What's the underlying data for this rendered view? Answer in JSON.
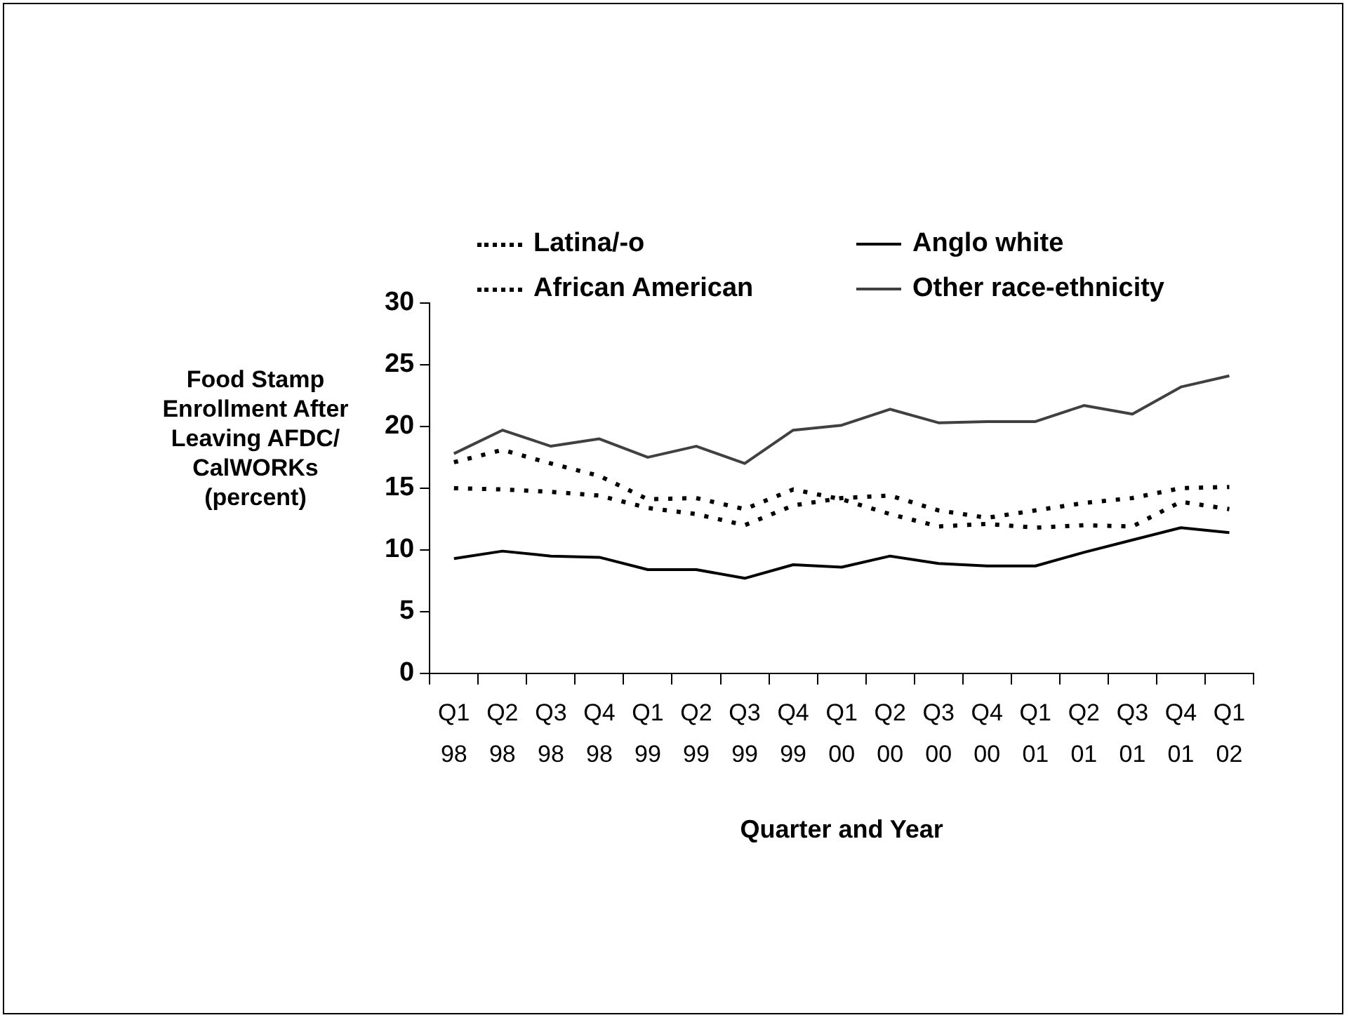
{
  "chart_data": {
    "type": "line",
    "xlabel": "Quarter and Year",
    "ylabel": "Food Stamp Enrollment After Leaving AFDC/ CalWORKs (percent)",
    "categories": [
      "Q1 98",
      "Q2 98",
      "Q3 98",
      "Q4 98",
      "Q1 99",
      "Q2 99",
      "Q3 99",
      "Q4 99",
      "Q1 00",
      "Q2 00",
      "Q3 00",
      "Q4 00",
      "Q1 01",
      "Q2 01",
      "Q3 01",
      "Q4 01",
      "Q1 02"
    ],
    "series": [
      {
        "name": "Latina/-o",
        "color": "#000000",
        "line_style": "dotted",
        "values": [
          15.0,
          14.9,
          14.7,
          14.4,
          13.4,
          12.9,
          12.0,
          13.6,
          14.2,
          14.4,
          13.2,
          12.6,
          13.2,
          13.8,
          14.2,
          15.0,
          15.1
        ]
      },
      {
        "name": "Anglo white",
        "color": "#000000",
        "line_style": "solid",
        "values": [
          9.3,
          9.9,
          9.5,
          9.4,
          8.4,
          8.4,
          7.7,
          8.8,
          8.6,
          9.5,
          8.9,
          8.7,
          8.7,
          9.8,
          10.8,
          11.8,
          11.4
        ]
      },
      {
        "name": "African American",
        "color": "#000000",
        "line_style": "dotted",
        "values": [
          17.1,
          18.1,
          17.0,
          16.0,
          14.1,
          14.2,
          13.3,
          14.9,
          14.1,
          12.9,
          11.9,
          12.1,
          11.8,
          12.0,
          11.9,
          13.9,
          13.3
        ]
      },
      {
        "name": "Other race-ethnicity",
        "color": "#404040",
        "line_style": "solid",
        "values": [
          17.8,
          19.7,
          18.4,
          19.0,
          17.5,
          18.4,
          17.0,
          19.7,
          20.1,
          21.4,
          20.3,
          20.4,
          20.4,
          21.7,
          21.0,
          23.2,
          24.1
        ]
      }
    ],
    "ylim": [
      0,
      30
    ],
    "yticks": [
      0,
      5,
      10,
      15,
      20,
      25,
      30
    ],
    "grid": false,
    "legend": "top",
    "marker": "none"
  }
}
